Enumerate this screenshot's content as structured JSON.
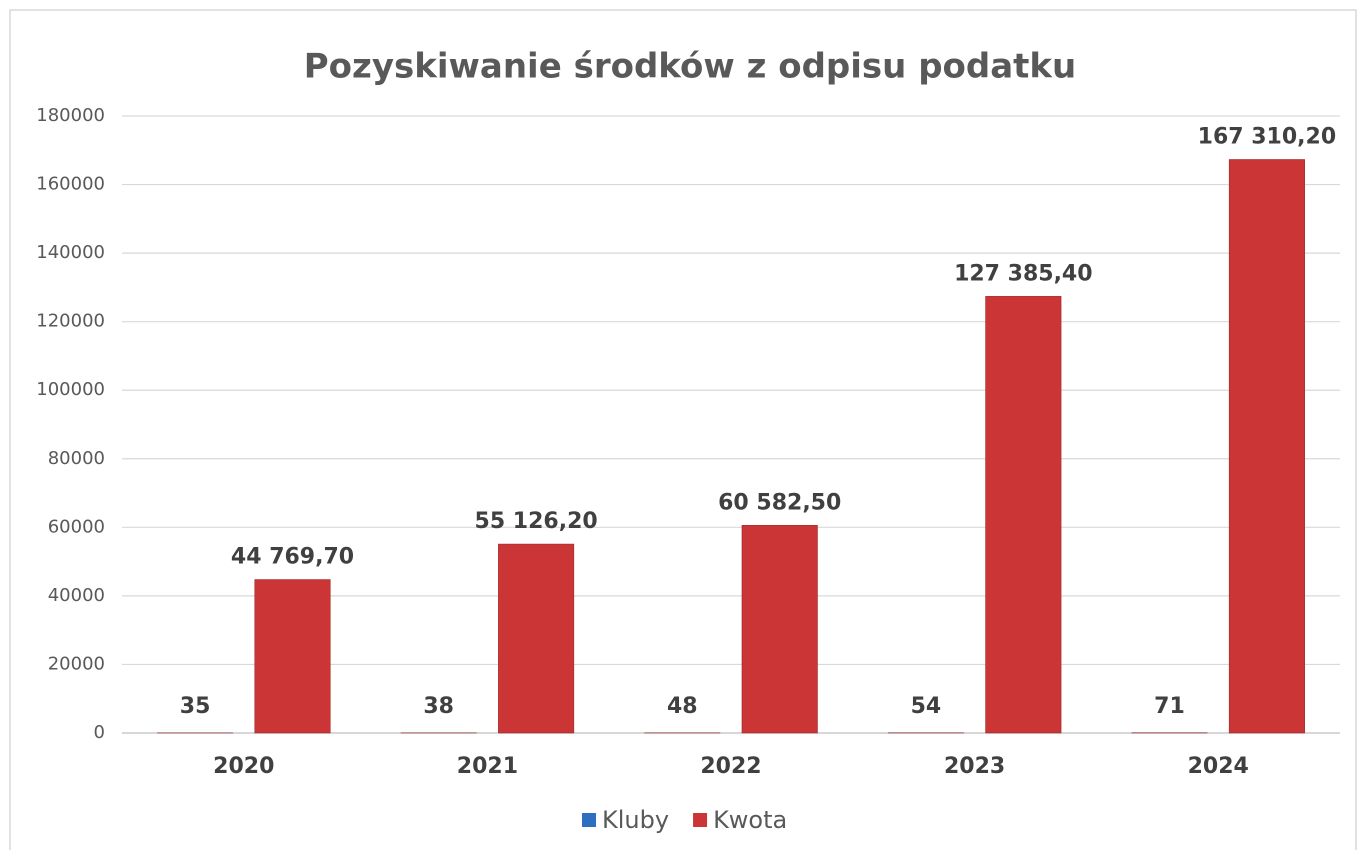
{
  "chart_data": {
    "type": "bar",
    "title": "Pozyskiwanie środków z odpisu podatku",
    "categories": [
      "2020",
      "2021",
      "2022",
      "2023",
      "2024"
    ],
    "series": [
      {
        "name": "Kluby",
        "color": "#2e6fbf",
        "values": [
          35,
          38,
          48,
          54,
          71
        ]
      },
      {
        "name": "Kwota",
        "color": "#cc3535",
        "values": [
          44769.7,
          55126.2,
          60582.5,
          127385.4,
          167310.2
        ],
        "value_labels": [
          "44 769,70",
          "55 126,20",
          "60 582,50",
          "127 385,40",
          "167 310,20"
        ]
      }
    ],
    "ylim": [
      0,
      180000
    ],
    "yticks": [
      0,
      20000,
      40000,
      60000,
      80000,
      100000,
      120000,
      140000,
      160000,
      180000
    ],
    "grid": true,
    "legend": "bottom"
  }
}
